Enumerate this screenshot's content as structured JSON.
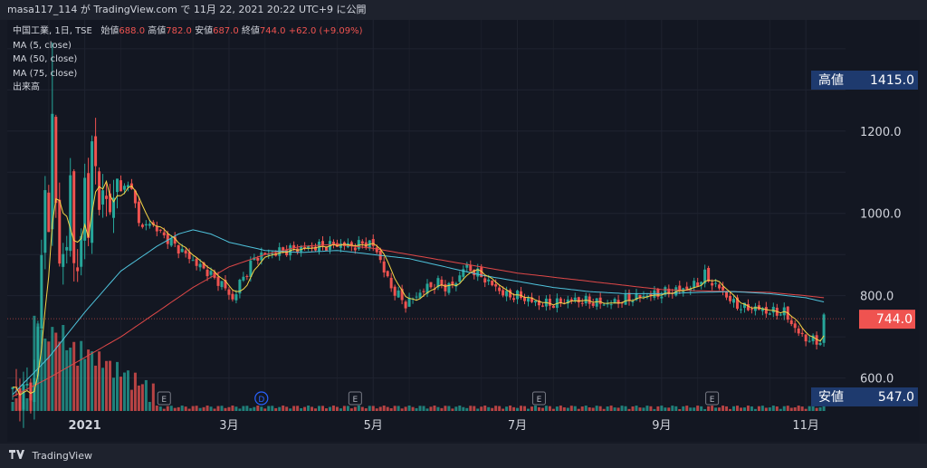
{
  "header": {
    "publish_info": "masa117_114 が TradingView.com で 11月 22, 2021 20:22 UTC+9 に公開"
  },
  "legend": {
    "symbol": "中国工業, 1日, TSE",
    "open_label": "始値",
    "open_value": "688.0",
    "high_label": "高値",
    "high_value": "782.0",
    "low_label": "安値",
    "low_value": "687.0",
    "close_label": "終値",
    "close_value": "744.0",
    "change": "+62.0 (+9.09%)",
    "ma5": "MA (5, close)",
    "ma50": "MA (50, close)",
    "ma75": "MA (75, close)",
    "volume": "出来高"
  },
  "badges": {
    "high_label": "高値",
    "high_value": "1415.0",
    "current_value": "744.0",
    "low_label": "安値",
    "low_value": "547.0"
  },
  "event_markers": [
    "E",
    "D",
    "E",
    "E",
    "E"
  ],
  "footer": {
    "brand": "TradingView"
  },
  "colors": {
    "up": "#26a69a",
    "down": "#ef5350",
    "ma5": "#f5d547",
    "ma50": "#4fc3dc",
    "ma75": "#e04848",
    "badge": "#1e3a6e",
    "current": "#ef5350"
  },
  "chart_data": {
    "type": "line",
    "ylim": [
      520,
      1470
    ],
    "yticks": [
      600.0,
      800.0,
      1000.0,
      1200.0
    ],
    "ytick_labels": [
      "600.0",
      "800.0",
      "1000.0",
      "1200.0"
    ],
    "xtick_labels": [
      "2021",
      "3月",
      "5月",
      "7月",
      "9月",
      "11月"
    ],
    "xtick_positions": [
      20,
      60,
      100,
      140,
      180,
      220
    ],
    "n_days": 230,
    "close_anchors": [
      [
        0,
        560
      ],
      [
        4,
        565
      ],
      [
        6,
        590
      ],
      [
        7,
        720
      ],
      [
        8,
        900
      ],
      [
        9,
        1050
      ],
      [
        10,
        980
      ],
      [
        11,
        1220
      ],
      [
        12,
        1010
      ],
      [
        13,
        920
      ],
      [
        14,
        880
      ],
      [
        15,
        900
      ],
      [
        16,
        1120
      ],
      [
        17,
        870
      ],
      [
        18,
        860
      ],
      [
        19,
        940
      ],
      [
        20,
        1080
      ],
      [
        21,
        970
      ],
      [
        22,
        1150
      ],
      [
        24,
        1050
      ],
      [
        26,
        1020
      ],
      [
        28,
        1030
      ],
      [
        29,
        1090
      ],
      [
        30,
        1050
      ],
      [
        32,
        1080
      ],
      [
        34,
        1020
      ],
      [
        36,
        960
      ],
      [
        38,
        980
      ],
      [
        40,
        960
      ],
      [
        44,
        930
      ],
      [
        48,
        900
      ],
      [
        52,
        870
      ],
      [
        54,
        860
      ],
      [
        56,
        840
      ],
      [
        58,
        830
      ],
      [
        61,
        790
      ],
      [
        63,
        830
      ],
      [
        65,
        860
      ],
      [
        67,
        890
      ],
      [
        69,
        900
      ],
      [
        71,
        900
      ],
      [
        75,
        910
      ],
      [
        80,
        915
      ],
      [
        85,
        920
      ],
      [
        90,
        925
      ],
      [
        95,
        920
      ],
      [
        98,
        930
      ],
      [
        100,
        920
      ],
      [
        101,
        910
      ],
      [
        103,
        860
      ],
      [
        105,
        820
      ],
      [
        107,
        800
      ],
      [
        109,
        780
      ],
      [
        112,
        800
      ],
      [
        115,
        820
      ],
      [
        118,
        830
      ],
      [
        120,
        820
      ],
      [
        123,
        830
      ],
      [
        125,
        870
      ],
      [
        128,
        860
      ],
      [
        131,
        840
      ],
      [
        134,
        820
      ],
      [
        137,
        800
      ],
      [
        140,
        800
      ],
      [
        143,
        790
      ],
      [
        146,
        780
      ],
      [
        150,
        780
      ],
      [
        155,
        790
      ],
      [
        160,
        785
      ],
      [
        165,
        780
      ],
      [
        170,
        790
      ],
      [
        175,
        800
      ],
      [
        180,
        805
      ],
      [
        185,
        815
      ],
      [
        188,
        820
      ],
      [
        190,
        830
      ],
      [
        192,
        850
      ],
      [
        194,
        830
      ],
      [
        196,
        820
      ],
      [
        198,
        800
      ],
      [
        200,
        780
      ],
      [
        203,
        770
      ],
      [
        206,
        770
      ],
      [
        210,
        760
      ],
      [
        214,
        760
      ],
      [
        217,
        720
      ],
      [
        219,
        700
      ],
      [
        222,
        690
      ],
      [
        224,
        690
      ],
      [
        225,
        744
      ]
    ],
    "ma50_anchors": [
      [
        0,
        560
      ],
      [
        10,
        650
      ],
      [
        20,
        760
      ],
      [
        30,
        860
      ],
      [
        40,
        920
      ],
      [
        46,
        950
      ],
      [
        50,
        960
      ],
      [
        55,
        950
      ],
      [
        60,
        930
      ],
      [
        70,
        910
      ],
      [
        80,
        905
      ],
      [
        90,
        910
      ],
      [
        100,
        900
      ],
      [
        110,
        890
      ],
      [
        120,
        870
      ],
      [
        130,
        850
      ],
      [
        140,
        835
      ],
      [
        150,
        820
      ],
      [
        160,
        810
      ],
      [
        170,
        805
      ],
      [
        180,
        805
      ],
      [
        190,
        808
      ],
      [
        200,
        810
      ],
      [
        210,
        805
      ],
      [
        220,
        795
      ],
      [
        225,
        785
      ]
    ],
    "ma75_anchors": [
      [
        0,
        555
      ],
      [
        10,
        600
      ],
      [
        20,
        650
      ],
      [
        30,
        700
      ],
      [
        40,
        760
      ],
      [
        50,
        820
      ],
      [
        60,
        870
      ],
      [
        70,
        900
      ],
      [
        80,
        920
      ],
      [
        90,
        925
      ],
      [
        100,
        915
      ],
      [
        110,
        900
      ],
      [
        120,
        885
      ],
      [
        130,
        870
      ],
      [
        140,
        855
      ],
      [
        150,
        845
      ],
      [
        160,
        835
      ],
      [
        170,
        825
      ],
      [
        180,
        815
      ],
      [
        190,
        812
      ],
      [
        200,
        810
      ],
      [
        210,
        808
      ],
      [
        220,
        800
      ],
      [
        225,
        795
      ]
    ],
    "ohlc_source": "derived",
    "volume_profile": "spike early Jan 2021, decaying after"
  }
}
